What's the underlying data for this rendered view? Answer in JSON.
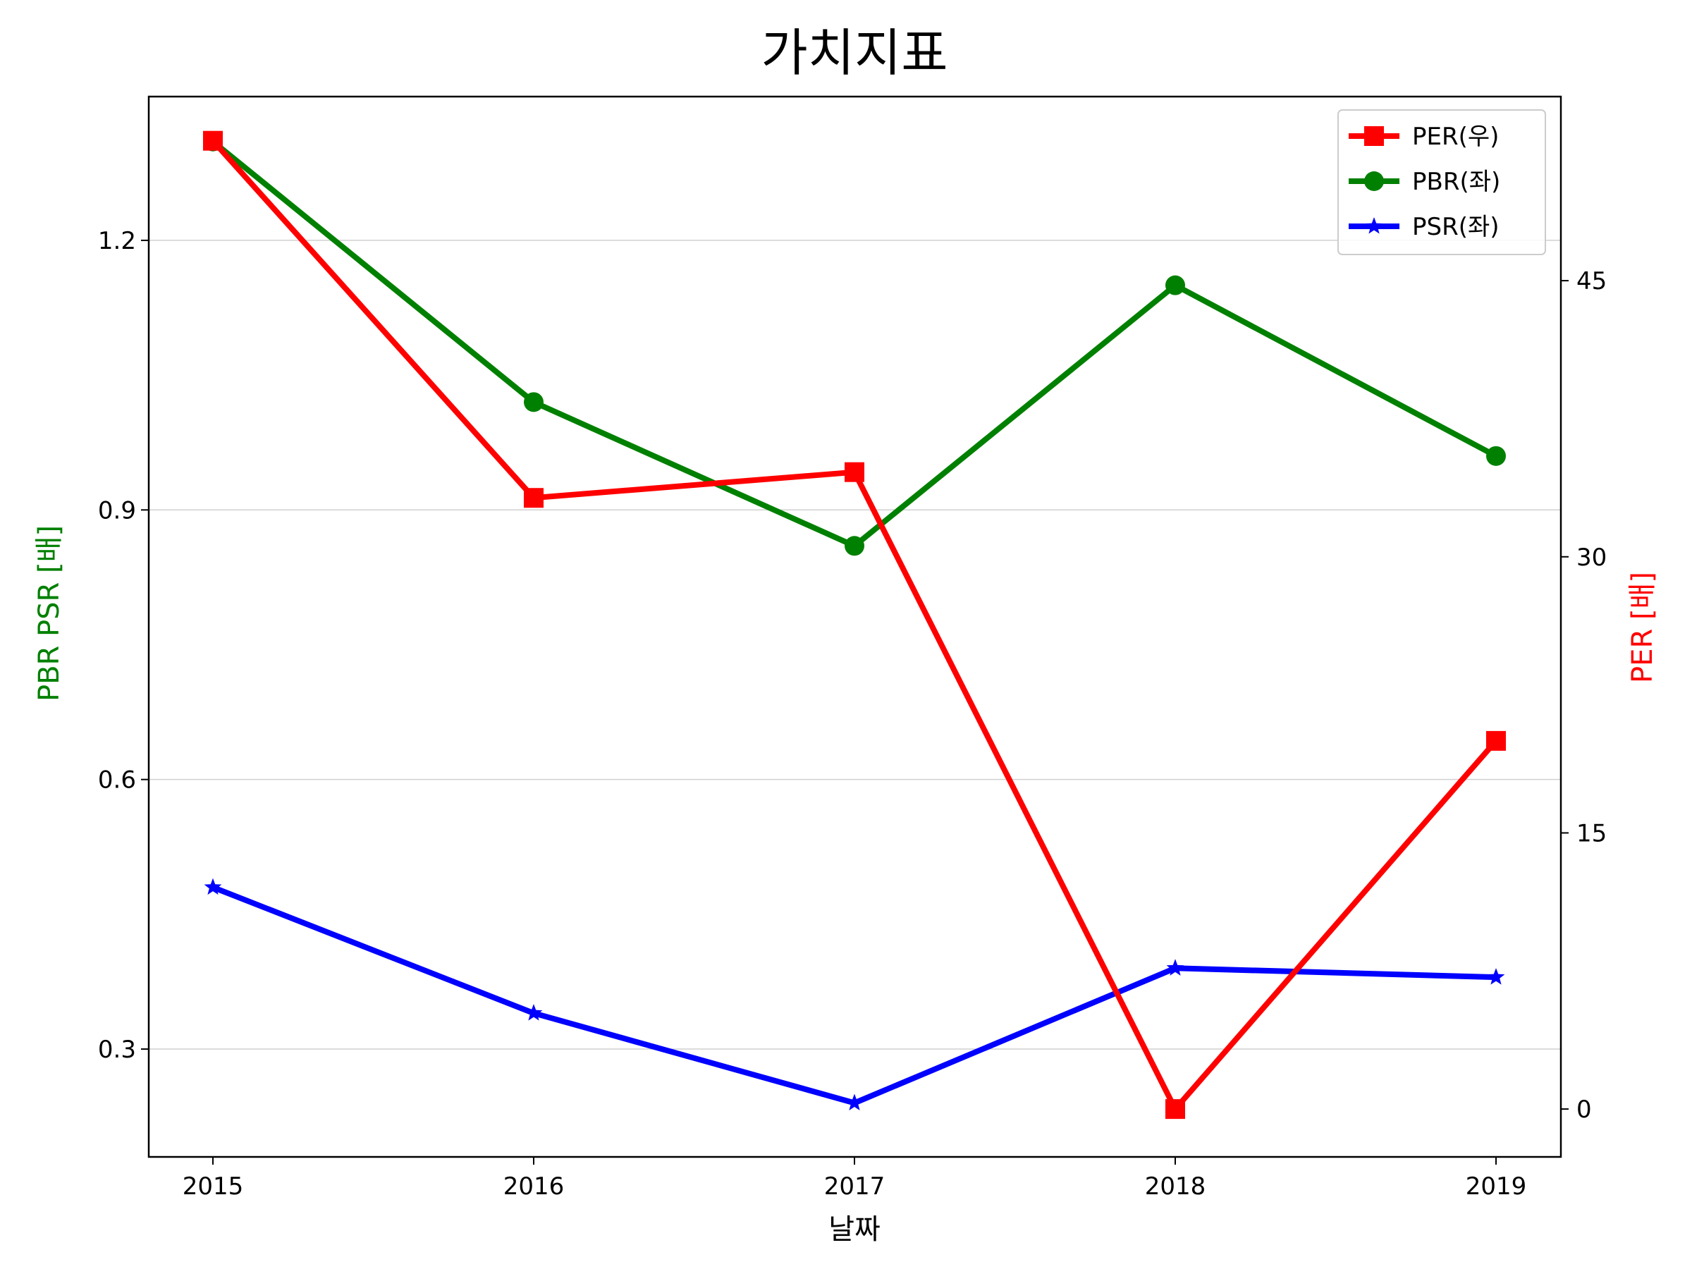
{
  "chart_data": {
    "type": "line",
    "title": "가치지표",
    "xlabel": "날짜",
    "ylabel_left": "PBR PSR [배]",
    "ylabel_right": "PER [배]",
    "colors": {
      "left_label": "#008000",
      "right_label": "#ff0000"
    },
    "x": [
      "2015",
      "2016",
      "2017",
      "2018",
      "2019"
    ],
    "y_left_lim": [
      0.18,
      1.36
    ],
    "y_left_ticks": [
      "0.3",
      "0.6",
      "0.9",
      "1.2"
    ],
    "y_right_lim": [
      -2.6,
      55
    ],
    "y_right_ticks": [
      "0",
      "15",
      "30",
      "45"
    ],
    "grid": "horizontal, left axis",
    "legend_position": "top-right",
    "series": [
      {
        "name": "PER(우)",
        "axis": "right",
        "color": "#ff0000",
        "marker": "square",
        "values": [
          52.6,
          33.2,
          34.6,
          0.0,
          20.0
        ]
      },
      {
        "name": "PBR(좌)",
        "axis": "left",
        "color": "#008000",
        "marker": "circle",
        "values": [
          1.31,
          1.02,
          0.86,
          1.15,
          0.96
        ]
      },
      {
        "name": "PSR(좌)",
        "axis": "left",
        "color": "#0000ff",
        "marker": "star",
        "values": [
          0.48,
          0.34,
          0.24,
          0.39,
          0.38
        ]
      }
    ]
  }
}
